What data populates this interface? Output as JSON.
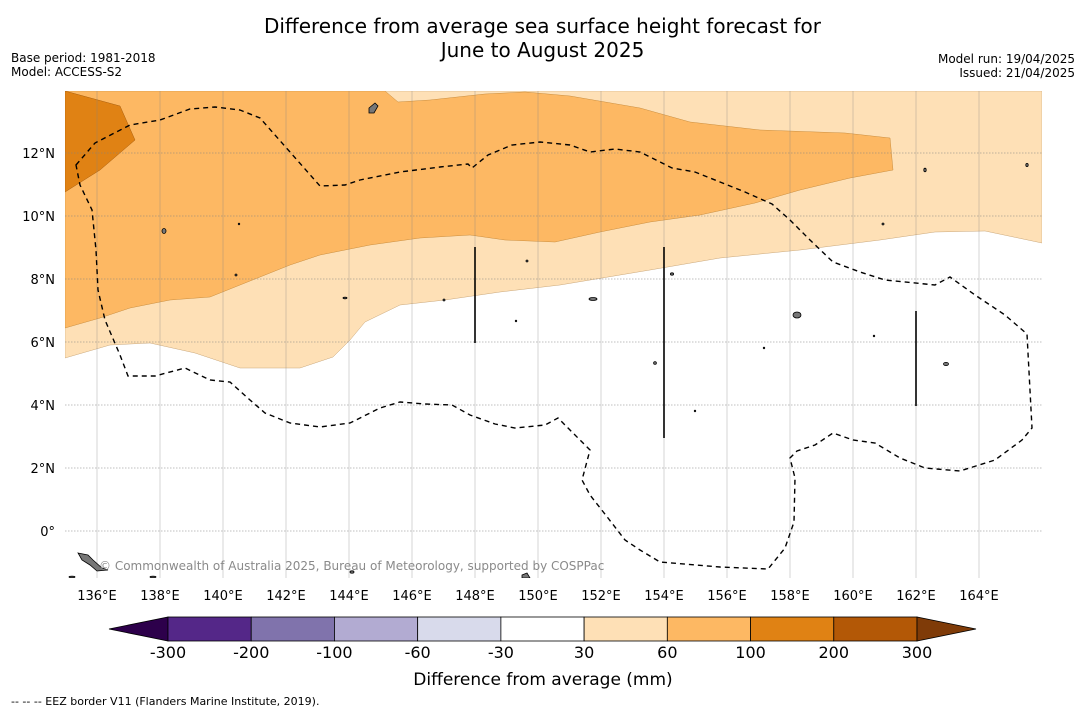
{
  "header": {
    "title_line1": "Difference from average sea surface height forecast for",
    "title_line2": "June to August 2025",
    "base_period": "Base period: 1981-2018",
    "model": "Model: ACCESS-S2",
    "model_run": "Model run: 19/04/2025",
    "issued": "Issued: 21/04/2025"
  },
  "map": {
    "lat_labels": [
      "12°N",
      "10°N",
      "8°N",
      "6°N",
      "4°N",
      "2°N",
      "0°"
    ],
    "lon_labels": [
      "136°E",
      "138°E",
      "140°E",
      "142°E",
      "144°E",
      "146°E",
      "148°E",
      "150°E",
      "152°E",
      "154°E",
      "156°E",
      "158°E",
      "160°E",
      "162°E",
      "164°E"
    ],
    "copyright": "© Commonwealth of Australia 2025, Bureau of Meteorology, supported by COSPPac"
  },
  "colorbar": {
    "title": "Difference from average (mm)",
    "tick_labels": [
      "-300",
      "-200",
      "-100",
      "-60",
      "-30",
      "30",
      "60",
      "100",
      "200",
      "300"
    ],
    "colors": [
      "#2d004b",
      "#542788",
      "#8073ac",
      "#b2abd2",
      "#d8daeb",
      "#ffffff",
      "#fee0b6",
      "#fdb863",
      "#e08214",
      "#b35806",
      "#7f3b08"
    ]
  },
  "footnote": "--  --  -- EEZ border V11 (Flanders Marine Institute, 2019)."
}
